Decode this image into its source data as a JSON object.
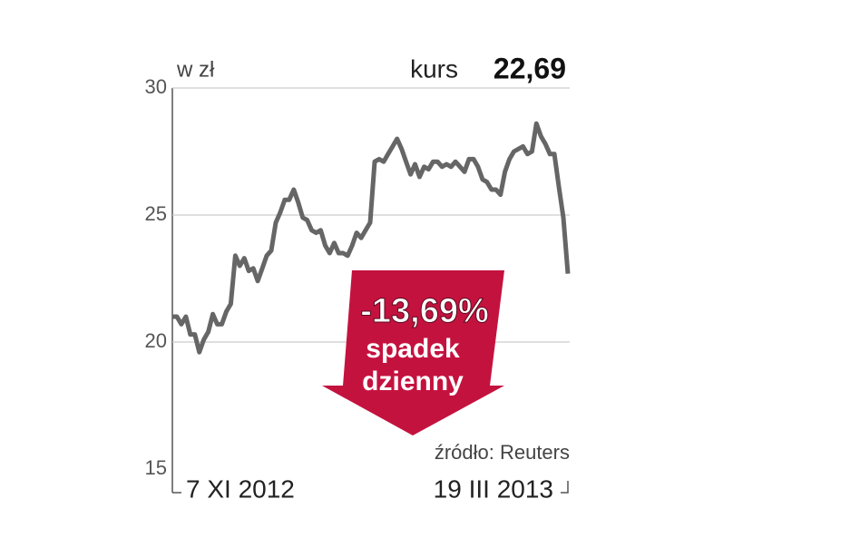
{
  "chart_data": {
    "type": "line",
    "y_unit": "w zł",
    "price_label": "kurs",
    "price": "22,69",
    "change": "-13,69%",
    "change_caption": [
      "spadek",
      "dzienny"
    ],
    "source": "źródło: Reuters",
    "categories": [
      "7 XI 2012",
      null,
      null,
      null,
      null,
      null,
      null,
      null,
      null,
      null,
      null,
      null,
      null,
      null,
      null,
      null,
      null,
      null,
      null,
      null,
      null,
      null,
      null,
      null,
      null,
      null,
      null,
      null,
      null,
      null,
      null,
      null,
      null,
      null,
      null,
      null,
      null,
      null,
      null,
      null,
      null,
      null,
      null,
      null,
      null,
      null,
      null,
      null,
      null,
      null,
      null,
      null,
      null,
      null,
      null,
      null,
      null,
      null,
      null,
      null,
      null,
      null,
      null,
      null,
      null,
      null,
      null,
      null,
      null,
      null,
      null,
      null,
      null,
      null,
      null,
      null,
      null,
      null,
      null,
      null,
      null,
      null,
      null,
      null,
      null,
      null,
      null,
      null,
      "19 III 2013"
    ],
    "values": [
      21.0,
      21.0,
      20.7,
      21.0,
      20.3,
      20.3,
      19.6,
      20.1,
      20.4,
      21.1,
      20.7,
      20.7,
      21.2,
      21.5,
      23.4,
      23.0,
      23.3,
      22.8,
      22.9,
      22.4,
      22.9,
      23.4,
      23.6,
      24.7,
      25.1,
      25.6,
      25.6,
      26.0,
      25.5,
      24.9,
      24.8,
      24.4,
      24.3,
      24.4,
      23.8,
      23.5,
      23.9,
      23.5,
      23.5,
      23.4,
      23.8,
      24.3,
      24.1,
      24.4,
      24.7,
      27.1,
      27.2,
      27.1,
      27.4,
      27.7,
      28.0,
      27.6,
      27.1,
      26.6,
      27.0,
      26.5,
      26.9,
      26.8,
      27.1,
      27.1,
      26.9,
      27.0,
      26.9,
      27.1,
      26.9,
      26.7,
      27.2,
      27.2,
      26.9,
      26.4,
      26.3,
      26.0,
      26.0,
      25.8,
      26.7,
      27.2,
      27.5,
      27.6,
      27.7,
      27.4,
      27.5,
      28.6,
      28.1,
      27.8,
      27.4,
      27.4,
      26.1,
      24.9,
      22.69
    ],
    "color": "#666666",
    "ylim": [
      15,
      30
    ],
    "yticks": [
      15,
      20,
      25,
      30
    ],
    "grid": true
  }
}
